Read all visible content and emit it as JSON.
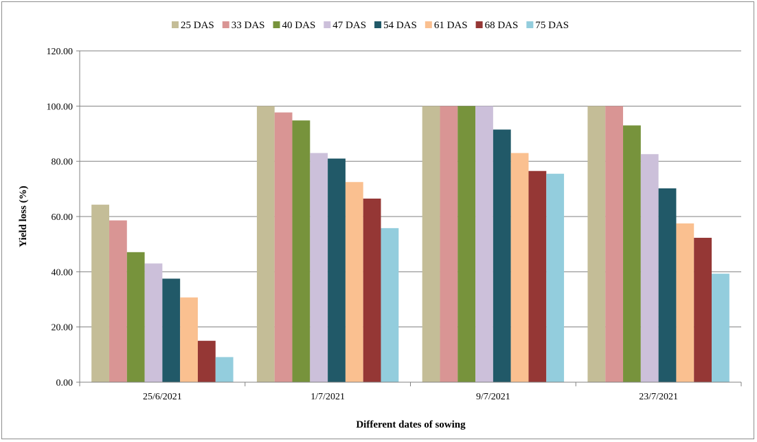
{
  "chart_data": {
    "type": "bar",
    "title": "",
    "xlabel": "Different dates of sowing",
    "ylabel": "Yield loss (%)",
    "categories": [
      "25/6/2021",
      "1/7/2021",
      "9/7/2021",
      "23/7/2021"
    ],
    "ylim": [
      0,
      120
    ],
    "yticks": [
      "0.00",
      "20.00",
      "40.00",
      "60.00",
      "80.00",
      "100.00",
      "120.00"
    ],
    "grid": true,
    "legend_position": "top",
    "series": [
      {
        "name": "25 DAS",
        "color": "#c4bd97",
        "values": [
          64.3,
          100,
          100,
          100
        ]
      },
      {
        "name": "33 DAS",
        "color": "#d99594",
        "values": [
          58.6,
          97.7,
          100,
          100
        ]
      },
      {
        "name": "40 DAS",
        "color": "#77933c",
        "values": [
          47.1,
          94.8,
          100,
          93.0
        ]
      },
      {
        "name": "47 DAS",
        "color": "#ccc0da",
        "values": [
          43.0,
          83.0,
          100,
          82.6
        ]
      },
      {
        "name": "54 DAS",
        "color": "#215968",
        "values": [
          37.5,
          81.0,
          91.5,
          70.2
        ]
      },
      {
        "name": "61 DAS",
        "color": "#fac090",
        "values": [
          30.7,
          72.5,
          83.0,
          57.5
        ]
      },
      {
        "name": "68 DAS",
        "color": "#953735",
        "values": [
          15.0,
          66.5,
          76.5,
          52.3
        ]
      },
      {
        "name": "75 DAS",
        "color": "#93cddd",
        "values": [
          9.1,
          55.8,
          75.5,
          39.3
        ]
      }
    ]
  }
}
